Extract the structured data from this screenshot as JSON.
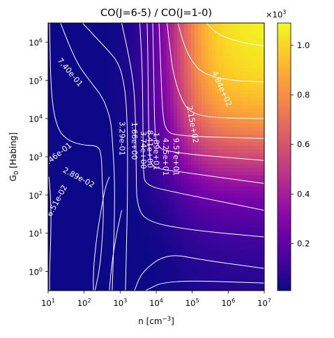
{
  "chart_data": {
    "type": "heatmap",
    "title": "CO(J=6-5) / CO(J=1-0)",
    "xlabel": "n [cm$^{-3}$]",
    "xlabel_text": "n [cm",
    "xlabel_sup": "−3",
    "xlabel_tail": "]",
    "ylabel": "G$_0$ [Habing]",
    "ylabel_main": "G",
    "ylabel_sub": "0",
    "ylabel_tail": " [Habing]",
    "xscale": "log",
    "yscale": "log",
    "xlim": [
      10,
      10000000
    ],
    "ylim": [
      0.3162,
      3162000
    ],
    "x_ticks": [
      {
        "value": 10,
        "base": "10",
        "exp": "1"
      },
      {
        "value": 100,
        "base": "10",
        "exp": "2"
      },
      {
        "value": 1000,
        "base": "10",
        "exp": "3"
      },
      {
        "value": 10000,
        "base": "10",
        "exp": "4"
      },
      {
        "value": 100000,
        "base": "10",
        "exp": "5"
      },
      {
        "value": 1000000,
        "base": "10",
        "exp": "6"
      },
      {
        "value": 10000000,
        "base": "10",
        "exp": "7"
      }
    ],
    "y_ticks": [
      {
        "value": 1,
        "base": "10",
        "exp": "0"
      },
      {
        "value": 10,
        "base": "10",
        "exp": "1"
      },
      {
        "value": 100,
        "base": "10",
        "exp": "2"
      },
      {
        "value": 1000,
        "base": "10",
        "exp": "3"
      },
      {
        "value": 10000,
        "base": "10",
        "exp": "4"
      },
      {
        "value": 100000,
        "base": "10",
        "exp": "5"
      },
      {
        "value": 1000000,
        "base": "10",
        "exp": "6"
      }
    ],
    "colormap": "plasma",
    "colorbar": {
      "range": [
        0.01,
        1.09
      ],
      "multiplier": "×10",
      "multiplier_exp": "3",
      "ticks": [
        {
          "value": 0.2,
          "label": "0.2"
        },
        {
          "value": 0.4,
          "label": "0.4"
        },
        {
          "value": 0.6,
          "label": "0.6"
        },
        {
          "value": 0.8,
          "label": "0.8"
        },
        {
          "value": 1.0,
          "label": "1.0"
        }
      ]
    },
    "contour_color": "#ffffff",
    "contour_labels": [
      {
        "text": "6.51e-02",
        "n": 18,
        "g0": 70,
        "angle": -62
      },
      {
        "text": "1.46e-01",
        "n": 18,
        "g0": 1100,
        "angle": -38
      },
      {
        "text": "2.89e-02",
        "n": 70,
        "g0": 280,
        "angle": 28
      },
      {
        "text": "7.40e-01",
        "n": 40,
        "g0": 160000,
        "angle": 50
      },
      {
        "text": "3.29e-01",
        "n": 1100,
        "g0": 3000,
        "angle": 90
      },
      {
        "text": "1.66e+00",
        "n": 2400,
        "g0": 2600,
        "angle": 90
      },
      {
        "text": "3.74e+00",
        "n": 4300,
        "g0": 1500,
        "angle": 90
      },
      {
        "text": "8.41e+00",
        "n": 6600,
        "g0": 1600,
        "angle": 90
      },
      {
        "text": "1.89e+01",
        "n": 9800,
        "g0": 1400,
        "angle": 90
      },
      {
        "text": "4.25e+01",
        "n": 18000,
        "g0": 1000,
        "angle": 90
      },
      {
        "text": "9.57e+01",
        "n": 35000,
        "g0": 1000,
        "angle": 90
      },
      {
        "text": "2.15e+02",
        "n": 100000,
        "g0": 7000,
        "angle": 80
      },
      {
        "text": "4.84e+02",
        "n": 650000,
        "g0": 60000,
        "angle": 66
      }
    ]
  }
}
